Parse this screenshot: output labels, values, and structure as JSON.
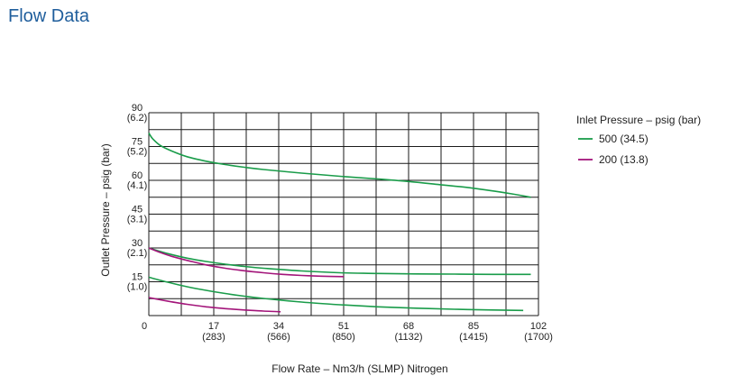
{
  "page": {
    "heading": "Flow Data"
  },
  "chart_data": {
    "type": "line",
    "xlabel": "Flow Rate – Nm3/h (SLMP) Nitrogen",
    "ylabel": "Outlet Pressure – psig (bar)",
    "xlim": [
      0,
      102
    ],
    "ylim": [
      0,
      90
    ],
    "x_grid_step": 8.5,
    "y_grid_step": 7.5,
    "grid": true,
    "x_ticks": [
      {
        "value": 0,
        "label": "0",
        "sub": ""
      },
      {
        "value": 17,
        "label": "17",
        "sub": "(283)"
      },
      {
        "value": 34,
        "label": "34",
        "sub": "(566)"
      },
      {
        "value": 51,
        "label": "51",
        "sub": "(850)"
      },
      {
        "value": 68,
        "label": "68",
        "sub": "(1132)"
      },
      {
        "value": 85,
        "label": "85",
        "sub": "(1415)"
      },
      {
        "value": 102,
        "label": "102",
        "sub": "(1700)"
      }
    ],
    "y_ticks": [
      {
        "value": 15,
        "label": "15",
        "sub": "(1.0)"
      },
      {
        "value": 30,
        "label": "30",
        "sub": "(2.1)"
      },
      {
        "value": 45,
        "label": "45",
        "sub": "(3.1)"
      },
      {
        "value": 60,
        "label": "60",
        "sub": "(4.1)"
      },
      {
        "value": 75,
        "label": "75",
        "sub": "(5.2)"
      },
      {
        "value": 90,
        "label": "90",
        "sub": "(6.2)"
      }
    ],
    "legend": {
      "title": "Inlet Pressure – psig (bar)",
      "position": "right",
      "entries": [
        {
          "label": "500 (34.5)",
          "color": "#1a9c4a"
        },
        {
          "label": "200 (13.8)",
          "color": "#a3157a"
        }
      ]
    },
    "series": [
      {
        "name": "500 (34.5)",
        "color": "#1a9c4a",
        "x": [
          0,
          1,
          3,
          6,
          10,
          15,
          20,
          25,
          30,
          40,
          50,
          60,
          68,
          75,
          85,
          95,
          100
        ],
        "y": [
          81,
          78.5,
          75.5,
          73,
          70.5,
          68.5,
          67,
          65.8,
          64.8,
          63.2,
          61.8,
          60.6,
          59.5,
          58.3,
          56.5,
          54,
          52.5
        ]
      },
      {
        "name": "500 (34.5)",
        "color": "#1a9c4a",
        "x": [
          0,
          5,
          10,
          15,
          20,
          25,
          30,
          40,
          50,
          60,
          70,
          80,
          90,
          100
        ],
        "y": [
          30,
          27.5,
          25.5,
          24,
          22.8,
          21.8,
          21,
          19.8,
          19,
          18.7,
          18.5,
          18.4,
          18.3,
          18.3
        ]
      },
      {
        "name": "500 (34.5)",
        "color": "#1a9c4a",
        "x": [
          0,
          5,
          10,
          15,
          20,
          25,
          30,
          40,
          50,
          60,
          70,
          80,
          90,
          98
        ],
        "y": [
          17,
          14.8,
          12.8,
          11.2,
          9.8,
          8.6,
          7.6,
          6,
          4.8,
          3.9,
          3.3,
          2.8,
          2.5,
          2.3
        ]
      },
      {
        "name": "200 (13.8)",
        "color": "#a3157a",
        "x": [
          0,
          3,
          6,
          10,
          15,
          20,
          25,
          30,
          35,
          40,
          45,
          51
        ],
        "y": [
          30,
          28,
          26.3,
          24.5,
          22.5,
          21,
          19.9,
          19,
          18.3,
          17.8,
          17.5,
          17.3
        ]
      },
      {
        "name": "200 (13.8)",
        "color": "#a3157a",
        "x": [
          0,
          3,
          6,
          10,
          15,
          20,
          25,
          30,
          34.5
        ],
        "y": [
          8,
          7,
          6.1,
          5,
          3.9,
          3.1,
          2.5,
          2,
          1.7
        ]
      }
    ]
  }
}
